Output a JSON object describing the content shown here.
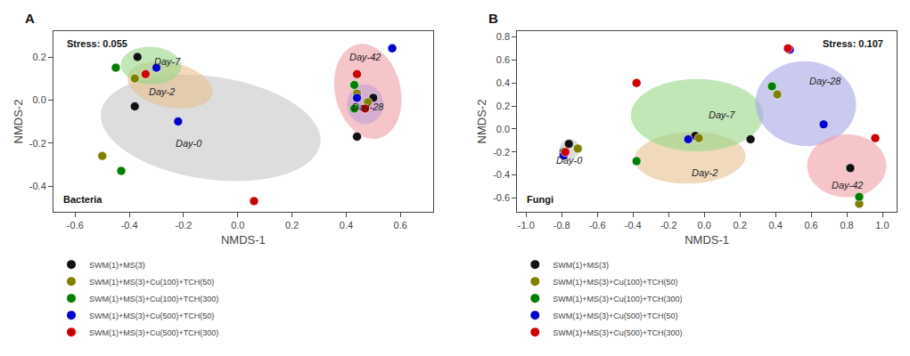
{
  "chart_data": [
    {
      "type": "scatter",
      "title": "A",
      "xlabel": "NMDS-1",
      "ylabel": "NMDS-2",
      "xlim": [
        -0.68,
        0.72
      ],
      "ylim": [
        -0.52,
        0.32
      ],
      "xticks": [
        -0.6,
        -0.4,
        -0.2,
        {
          "value": 0,
          "label": "0.0"
        },
        0.2,
        0.4,
        0.6
      ],
      "yticks": [
        -0.4,
        -0.2,
        {
          "value": 0,
          "label": "0.0"
        },
        0.2
      ],
      "grid": false,
      "legend": "bottom",
      "series": [
        {
          "name": "SWM(1)+MS(3)",
          "color": "#111111",
          "x": [
            -0.38,
            -0.37,
            0.44,
            0.5
          ],
          "values": [
            -0.03,
            0.2,
            -0.17,
            0.01
          ]
        },
        {
          "name": "SWM(1)+MS(3)+Cu(100)+TCH(50)",
          "color": "#808000",
          "x": [
            -0.5,
            -0.38,
            0.44,
            0.48
          ],
          "values": [
            -0.26,
            0.1,
            0.03,
            -0.01
          ]
        },
        {
          "name": "SWM(1)+MS(3)+Cu(100)+TCH(300)",
          "color": "#008000",
          "x": [
            -0.43,
            -0.45,
            0.43,
            0.43
          ],
          "values": [
            -0.33,
            0.15,
            0.07,
            -0.04
          ]
        },
        {
          "name": "SWM(1)+MS(3)+Cu(500)+TCH(50)",
          "color": "#0000cc",
          "x": [
            -0.22,
            -0.3,
            0.57,
            0.44
          ],
          "values": [
            -0.1,
            0.15,
            0.24,
            0.01
          ]
        },
        {
          "name": "SWM(1)+MS(3)+Cu(500)+TCH(300)",
          "color": "#cc0000",
          "x": [
            0.06,
            -0.34,
            0.44,
            0.47
          ],
          "values": [
            -0.47,
            0.12,
            0.12,
            -0.04
          ]
        }
      ],
      "ellipses": [
        {
          "label": "Day-0",
          "color": "#c8c8c8",
          "cx": -0.1,
          "cy": -0.13,
          "width": 0.82,
          "height": 0.47,
          "angle": -12,
          "label_x": -0.18,
          "label_y": -0.2
        },
        {
          "label": "Day-2",
          "color": "#e8c090",
          "cx": -0.25,
          "cy": 0.07,
          "width": 0.32,
          "height": 0.2,
          "angle": -18,
          "label_x": -0.28,
          "label_y": 0.04
        },
        {
          "label": "Day-7",
          "color": "#98d888",
          "cx": -0.32,
          "cy": 0.16,
          "width": 0.22,
          "height": 0.17,
          "angle": -5,
          "label_x": -0.26,
          "label_y": 0.18
        },
        {
          "label": "Day-42",
          "color": "#f0a0a8",
          "cx": 0.48,
          "cy": 0.04,
          "width": 0.24,
          "height": 0.44,
          "angle": 8,
          "label_x": 0.47,
          "label_y": 0.2
        },
        {
          "label": "Day-28",
          "color": "#c0a0d8",
          "cx": 0.47,
          "cy": -0.02,
          "width": 0.13,
          "height": 0.18,
          "angle": 0,
          "label_x": 0.48,
          "label_y": -0.03
        }
      ],
      "annotations": [
        {
          "text": "Stress: 0.055",
          "position": "upper left"
        },
        {
          "text": "Bacteria",
          "position": "lower left"
        }
      ]
    },
    {
      "type": "scatter",
      "title": "B",
      "xlabel": "NMDS-1",
      "ylabel": "NMDS-2",
      "xlim": [
        -1.05,
        1.08
      ],
      "ylim": [
        -0.72,
        0.85
      ],
      "xticks": [
        {
          "value": -1,
          "label": "-1.0"
        },
        -0.8,
        -0.6,
        -0.4,
        -0.2,
        {
          "value": 0,
          "label": "0.0"
        },
        0.2,
        0.4,
        0.6,
        0.8,
        {
          "value": 1,
          "label": "1.0"
        }
      ],
      "yticks": [
        -0.6,
        -0.4,
        -0.2,
        {
          "value": 0,
          "label": "0.0"
        },
        0.2,
        0.4,
        0.6,
        0.8
      ],
      "grid": false,
      "legend": "bottom",
      "series": [
        {
          "name": "SWM(1)+MS(3)",
          "color": "#111111",
          "x": [
            -0.76,
            -0.05,
            0.26,
            0.82
          ],
          "values": [
            -0.13,
            -0.06,
            -0.09,
            -0.34
          ]
        },
        {
          "name": "SWM(1)+MS(3)+Cu(100)+TCH(50)",
          "color": "#808000",
          "x": [
            -0.71,
            -0.03,
            0.41,
            0.87
          ],
          "values": [
            -0.17,
            -0.08,
            0.3,
            -0.65
          ]
        },
        {
          "name": "SWM(1)+MS(3)+Cu(100)+TCH(300)",
          "color": "#008000",
          "x": [
            -0.79,
            -0.38,
            0.38,
            0.87
          ],
          "values": [
            -0.2,
            -0.28,
            0.37,
            -0.59
          ]
        },
        {
          "name": "SWM(1)+MS(3)+Cu(500)+TCH(50)",
          "color": "#0000cc",
          "x": [
            -0.79,
            -0.09,
            0.48,
            0.67
          ],
          "values": [
            -0.23,
            -0.09,
            0.69,
            0.04
          ]
        },
        {
          "name": "SWM(1)+MS(3)+Cu(500)+TCH(300)",
          "color": "#cc0000",
          "x": [
            -0.78,
            -0.38,
            0.47,
            0.96
          ],
          "values": [
            -0.2,
            0.4,
            0.7,
            -0.08
          ]
        }
      ],
      "ellipses": [
        {
          "label": "Day-0",
          "color": "#c8c8c8",
          "cx": -0.755,
          "cy": -0.175,
          "width": 0.11,
          "height": 0.17,
          "angle": 0,
          "label_x": -0.755,
          "label_y": -0.27
        },
        {
          "label": "Day-2",
          "color": "#e8c090",
          "cx": -0.08,
          "cy": -0.25,
          "width": 0.62,
          "height": 0.44,
          "angle": 5,
          "label_x": 0.0,
          "label_y": -0.38
        },
        {
          "label": "Day-7",
          "color": "#98d888",
          "cx": -0.04,
          "cy": 0.12,
          "width": 0.74,
          "height": 0.62,
          "angle": 0,
          "label_x": 0.1,
          "label_y": 0.12
        },
        {
          "label": "Day-28",
          "color": "#a8a8e8",
          "cx": 0.57,
          "cy": 0.22,
          "width": 0.56,
          "height": 0.73,
          "angle": 3,
          "label_x": 0.68,
          "label_y": 0.42
        },
        {
          "label": "Day-42",
          "color": "#f0a0a8",
          "cx": 0.8,
          "cy": -0.32,
          "width": 0.44,
          "height": 0.54,
          "angle": 0,
          "label_x": 0.8,
          "label_y": -0.49
        }
      ],
      "annotations": [
        {
          "text": "Stress: 0.107",
          "position": "upper right"
        },
        {
          "text": "Fungi",
          "position": "lower left"
        }
      ]
    }
  ]
}
